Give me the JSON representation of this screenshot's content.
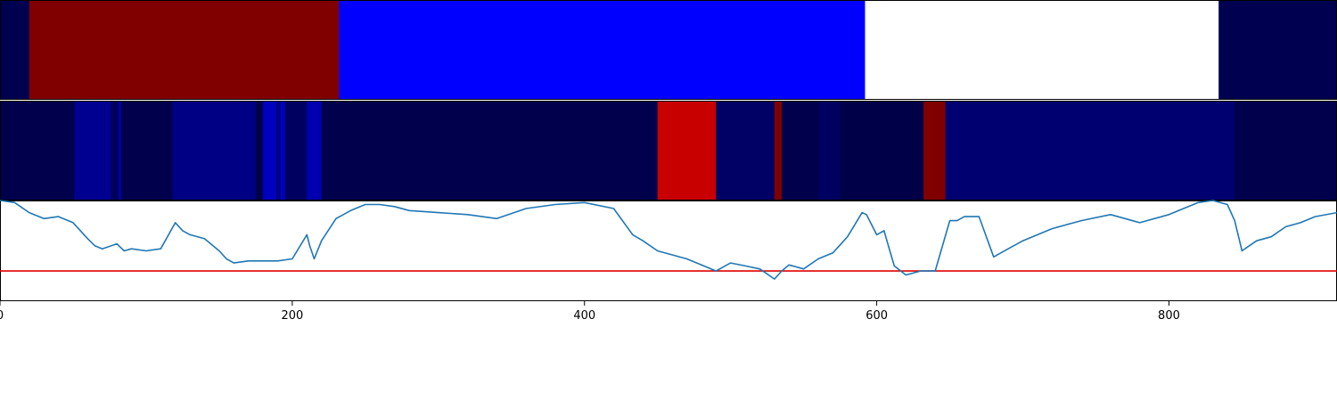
{
  "chart_data": {
    "type": "heatmap",
    "x_range": [
      0,
      915
    ],
    "x_ticks": [
      0,
      200,
      400,
      600,
      800
    ],
    "x_tick_labels": [
      "0",
      "200",
      "400",
      "600",
      "800"
    ],
    "panels": [
      {
        "name": "top-band",
        "type": "heatmap",
        "segments": [
          {
            "start": 0,
            "end": 20,
            "color": "#000050"
          },
          {
            "start": 20,
            "end": 232,
            "color": "#800000"
          },
          {
            "start": 232,
            "end": 592,
            "color": "#0000ff"
          },
          {
            "start": 592,
            "end": 834,
            "color": "#ffffff"
          },
          {
            "start": 834,
            "end": 915,
            "color": "#000050"
          }
        ]
      },
      {
        "name": "middle-band",
        "type": "heatmap",
        "segments": [
          {
            "start": 0,
            "end": 51,
            "color": "#00004d"
          },
          {
            "start": 51,
            "end": 76,
            "color": "#000090"
          },
          {
            "start": 76,
            "end": 81,
            "color": "#00005c"
          },
          {
            "start": 81,
            "end": 83,
            "color": "#0000a0"
          },
          {
            "start": 83,
            "end": 118,
            "color": "#00004d"
          },
          {
            "start": 118,
            "end": 175,
            "color": "#000085"
          },
          {
            "start": 175,
            "end": 180,
            "color": "#00004a"
          },
          {
            "start": 180,
            "end": 189,
            "color": "#0000c0"
          },
          {
            "start": 189,
            "end": 192,
            "color": "#000080"
          },
          {
            "start": 192,
            "end": 195,
            "color": "#0000c0"
          },
          {
            "start": 195,
            "end": 210,
            "color": "#000060"
          },
          {
            "start": 210,
            "end": 220,
            "color": "#0000b0"
          },
          {
            "start": 220,
            "end": 450,
            "color": "#00004d"
          },
          {
            "start": 450,
            "end": 490,
            "color": "#c80000"
          },
          {
            "start": 490,
            "end": 530,
            "color": "#000065"
          },
          {
            "start": 530,
            "end": 535,
            "color": "#800000"
          },
          {
            "start": 535,
            "end": 560,
            "color": "#00004d"
          },
          {
            "start": 560,
            "end": 575,
            "color": "#000060"
          },
          {
            "start": 575,
            "end": 632,
            "color": "#000048"
          },
          {
            "start": 632,
            "end": 647,
            "color": "#800000"
          },
          {
            "start": 647,
            "end": 845,
            "color": "#000070"
          },
          {
            "start": 845,
            "end": 915,
            "color": "#00004d"
          }
        ]
      },
      {
        "name": "line-panel",
        "type": "line",
        "line_color": "#1f77b4",
        "y_range": [
          0,
          1
        ],
        "threshold": 0.3,
        "threshold_color": "#e00000",
        "series": [
          {
            "name": "signal",
            "x": [
              0,
              10,
              20,
              30,
              40,
              50,
              55,
              60,
              65,
              70,
              80,
              85,
              90,
              100,
              110,
              120,
              125,
              130,
              140,
              150,
              155,
              160,
              170,
              180,
              190,
              200,
              210,
              212,
              215,
              220,
              230,
              240,
              250,
              260,
              270,
              280,
              300,
              320,
              340,
              360,
              380,
              400,
              420,
              433,
              440,
              450,
              460,
              470,
              480,
              490,
              500,
              510,
              520,
              530,
              535,
              540,
              550,
              560,
              570,
              580,
              590,
              593,
              600,
              605,
              608,
              612,
              620,
              630,
              640,
              650,
              655,
              660,
              670,
              680,
              690,
              700,
              720,
              740,
              760,
              780,
              800,
              820,
              830,
              840,
              845,
              850,
              860,
              870,
              880,
              890,
              900,
              915
            ],
            "y": [
              1.0,
              0.98,
              0.88,
              0.82,
              0.84,
              0.78,
              0.7,
              0.62,
              0.55,
              0.52,
              0.57,
              0.5,
              0.52,
              0.5,
              0.52,
              0.78,
              0.7,
              0.66,
              0.62,
              0.5,
              0.42,
              0.38,
              0.4,
              0.4,
              0.4,
              0.42,
              0.66,
              0.55,
              0.42,
              0.6,
              0.82,
              0.9,
              0.96,
              0.96,
              0.94,
              0.9,
              0.88,
              0.86,
              0.82,
              0.92,
              0.96,
              0.98,
              0.92,
              0.66,
              0.6,
              0.5,
              0.46,
              0.42,
              0.36,
              0.3,
              0.38,
              0.35,
              0.32,
              0.22,
              0.3,
              0.36,
              0.32,
              0.42,
              0.48,
              0.64,
              0.88,
              0.86,
              0.66,
              0.7,
              0.55,
              0.35,
              0.26,
              0.3,
              0.3,
              0.8,
              0.8,
              0.84,
              0.84,
              0.44,
              0.52,
              0.6,
              0.72,
              0.8,
              0.86,
              0.78,
              0.86,
              0.98,
              1.0,
              0.96,
              0.8,
              0.5,
              0.6,
              0.64,
              0.74,
              0.78,
              0.84,
              0.88
            ]
          }
        ]
      }
    ]
  }
}
